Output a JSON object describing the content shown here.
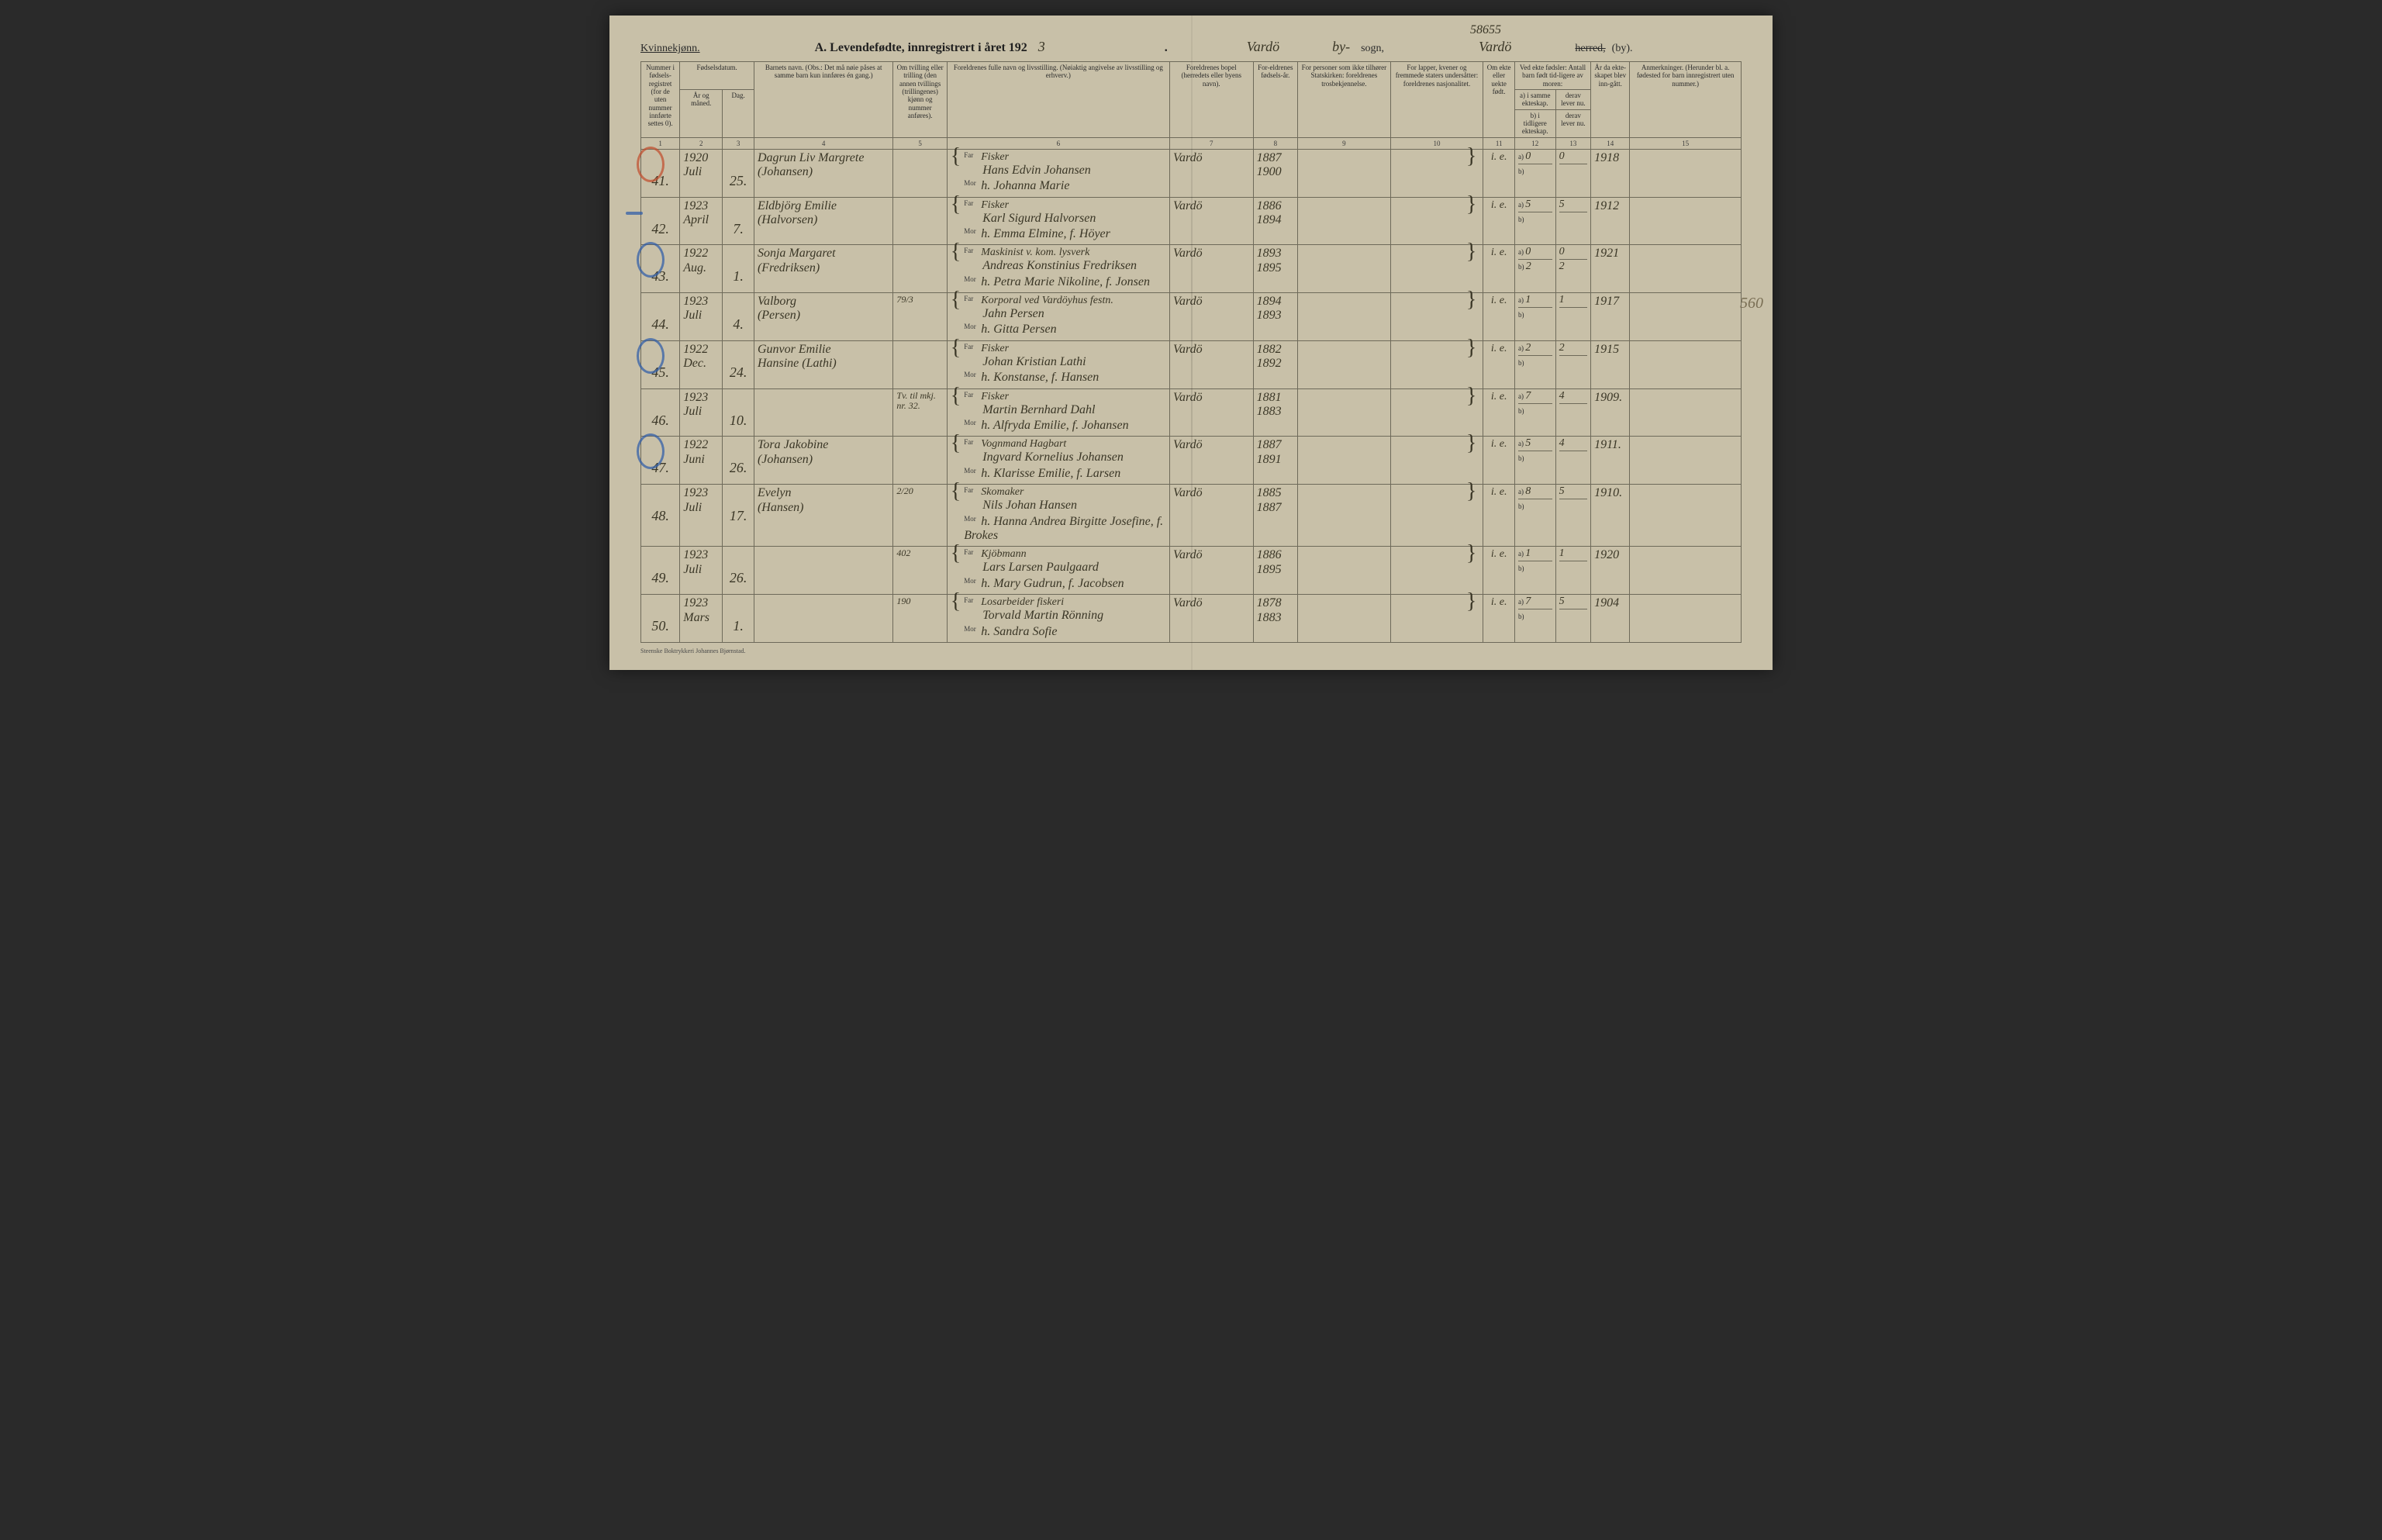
{
  "top_scribble": "58655",
  "header": {
    "gender_label": "Kvinnekjønn.",
    "title_prefix": "A.  Levendefødte, innregistrert i året 192",
    "year_suffix_hand": "3",
    "period_after_year": ".",
    "place_hand_1": "Vardö",
    "sogn_word_hand": "by-",
    "sogn_print": "sogn,",
    "place_hand_2": "Vardö",
    "herred_struck": "herred,",
    "by_print": "(by)."
  },
  "columns": {
    "c1": "Nummer i fødsels-registret (for de uten nummer innførte settes 0).",
    "c2_group": "Fødselsdatum.",
    "c2a": "År og måned.",
    "c2b": "Dag.",
    "c4": "Barnets navn.\n(Obs.: Det må nøie påses at samme barn kun innføres én gang.)",
    "c5": "Om tvilling eller trilling (den annen tvillings (trillingenes) kjønn og nummer anføres).",
    "c6": "Foreldrenes fulle navn og livsstilling.\n(Nøiaktig angivelse av livsstilling og erhverv.)",
    "c7": "Foreldrenes bopel (herredets eller byens navn).",
    "c8": "For-eldrenes fødsels-år.",
    "c9": "For personer som ikke tilhører Statskirken: foreldrenes trosbekjennelse.",
    "c10": "For lapper, kvener og fremmede staters undersåtter: foreldrenes nasjonalitet.",
    "c11": "Om ekte eller uekte født.",
    "c12_group": "Ved ekte fødsler: Antall barn født tid-ligere av moren:",
    "c12a": "a) i samme ekteskap.",
    "c12b": "b) i tidligere ekteskap.",
    "c13a": "derav lever nu.",
    "c13b": "derav lever nu.",
    "c14": "År da ekte-skapet blev inn-gått.",
    "c15": "Anmerkninger.\n(Herunder bl. a. fødested for barn innregistrert uten nummer.)"
  },
  "colnums": [
    "1",
    "2",
    "3",
    "4",
    "5",
    "6",
    "7",
    "8",
    "9",
    "10",
    "11",
    "12",
    "13",
    "14",
    "15"
  ],
  "far_label": "Far",
  "mor_label": "Mor",
  "entries": [
    {
      "nummer": "41.",
      "circle": "red",
      "aar_mnd_top": "1920",
      "aar_mnd_bot": "Juli",
      "dag": "25.",
      "barn_top": "Dagrun Liv Margrete",
      "barn_bot": "(Johansen)",
      "tvilling": "",
      "far_occ": "Fisker",
      "far_name": "Hans Edvin Johansen",
      "mor_name": "h. Johanna Marie",
      "bopel": "Vardö",
      "far_aar": "1887",
      "mor_aar": "1900",
      "c9": "",
      "c10": "",
      "ekte": "i. e.",
      "a_val": "0",
      "b_val": "",
      "c13": "0",
      "c14": "1918",
      "c15": ""
    },
    {
      "nummer": "42.",
      "mark": "dash-blue",
      "aar_mnd_top": "1923",
      "aar_mnd_bot": "April",
      "dag": "7.",
      "barn_top": "Eldbjörg Emilie",
      "barn_bot": "(Halvorsen)",
      "tvilling": "",
      "far_occ": "Fisker",
      "far_name": "Karl Sigurd Halvorsen",
      "mor_name": "h. Emma Elmine, f. Höyer",
      "bopel": "Vardö",
      "far_aar": "1886",
      "mor_aar": "1894",
      "c9": "",
      "c10": "",
      "ekte": "i. e.",
      "a_val": "5",
      "b_val": "",
      "c13": "5",
      "c14": "1912",
      "c15": ""
    },
    {
      "nummer": "43.",
      "circle": "blue",
      "aar_mnd_top": "1922",
      "aar_mnd_bot": "Aug.",
      "dag": "1.",
      "barn_top": "Sonja Margaret",
      "barn_bot": "(Fredriksen)",
      "tvilling": "",
      "far_occ": "Maskinist v. kom. lysverk",
      "far_name": "Andreas Konstinius Fredriksen",
      "mor_name": "h. Petra Marie Nikoline, f. Jonsen",
      "bopel": "Vardö",
      "far_aar": "1893",
      "mor_aar": "1895",
      "c9": "",
      "c10": "",
      "ekte": "i. e.",
      "a_val": "0",
      "b_val": "2",
      "c13_a": "0",
      "c13_b": "2",
      "c14": "1921",
      "c15": ""
    },
    {
      "nummer": "44.",
      "aar_mnd_top": "1923",
      "aar_mnd_bot": "Juli",
      "dag": "4.",
      "barn_top": "Valborg",
      "barn_bot": "(Persen)",
      "tvilling": "79/3",
      "far_occ": "Korporal ved Vardöyhus festn.",
      "far_name": "Jahn Persen",
      "mor_name": "h. Gitta Persen",
      "bopel": "Vardö",
      "far_aar": "1894",
      "mor_aar": "1893",
      "c9": "",
      "c10": "",
      "ekte": "i. e.",
      "a_val": "1",
      "b_val": "",
      "c13": "1",
      "c14": "1917",
      "c15": ""
    },
    {
      "nummer": "45.",
      "circle": "blue",
      "aar_mnd_top": "1922",
      "aar_mnd_bot": "Dec.",
      "dag": "24.",
      "barn_top": "Gunvor Emilie",
      "barn_bot": "Hansine (Lathi)",
      "tvilling": "",
      "far_occ": "Fisker",
      "far_name": "Johan Kristian Lathi",
      "mor_name": "h. Konstanse, f. Hansen",
      "bopel": "Vardö",
      "far_aar": "1882",
      "mor_aar": "1892",
      "c9": "",
      "c10": "",
      "ekte": "i. e.",
      "a_val": "2",
      "b_val": "",
      "c13": "2",
      "c14": "1915",
      "c15": ""
    },
    {
      "nummer": "46.",
      "aar_mnd_top": "1923",
      "aar_mnd_bot": "Juli",
      "dag": "10.",
      "barn_top": "",
      "barn_bot": "",
      "tvilling": "Tv. til mkj. nr. 32.",
      "far_occ": "Fisker",
      "far_name": "Martin Bernhard Dahl",
      "mor_name": "h. Alfryda Emilie, f. Johansen",
      "bopel": "Vardö",
      "far_aar": "1881",
      "mor_aar": "1883",
      "c9": "",
      "c10": "",
      "ekte": "i. e.",
      "a_val": "7",
      "b_val": "",
      "c13": "4",
      "c14": "1909.",
      "c15": ""
    },
    {
      "nummer": "47.",
      "circle": "blue",
      "aar_mnd_top": "1922",
      "aar_mnd_bot": "Juni",
      "dag": "26.",
      "barn_top": "Tora Jakobine",
      "barn_bot": "(Johansen)",
      "tvilling": "",
      "far_occ": "Vognmand Hagbart",
      "far_name": "Ingvard Kornelius Johansen",
      "mor_name": "h. Klarisse Emilie, f. Larsen",
      "bopel": "Vardö",
      "far_aar": "1887",
      "mor_aar": "1891",
      "c9": "",
      "c10": "",
      "ekte": "i. e.",
      "a_val": "5",
      "b_val": "",
      "c13": "4",
      "c14": "1911.",
      "c15": ""
    },
    {
      "nummer": "48.",
      "aar_mnd_top": "1923",
      "aar_mnd_bot": "Juli",
      "dag": "17.",
      "barn_top": "Evelyn",
      "barn_bot": "(Hansen)",
      "tvilling": "2/20",
      "far_occ": "Skomaker",
      "far_name": "Nils Johan Hansen",
      "mor_name": "h. Hanna Andrea Birgitte Josefine, f. Brokes",
      "bopel": "Vardö",
      "far_aar": "1885",
      "mor_aar": "1887",
      "c9": "",
      "c10": "",
      "ekte": "i. e.",
      "a_val": "8",
      "b_val": "",
      "c13": "5",
      "c14": "1910.",
      "c15": ""
    },
    {
      "nummer": "49.",
      "aar_mnd_top": "1923",
      "aar_mnd_bot": "Juli",
      "dag": "26.",
      "barn_top": "",
      "barn_bot": "",
      "tvilling": "402",
      "far_occ": "Kjöbmann",
      "far_name": "Lars Larsen Paulgaard",
      "mor_name": "h. Mary Gudrun, f. Jacobsen",
      "bopel": "Vardö",
      "far_aar": "1886",
      "mor_aar": "1895",
      "c9": "",
      "c10": "",
      "ekte": "i. e.",
      "a_val": "1",
      "b_val": "",
      "c13": "1",
      "c14": "1920",
      "c15": ""
    },
    {
      "nummer": "50.",
      "aar_mnd_top": "1923",
      "aar_mnd_bot": "Mars",
      "dag": "1.",
      "barn_top": "",
      "barn_bot": "",
      "tvilling": "190",
      "far_occ": "Losarbeider fiskeri",
      "far_name": "Torvald Martin Rönning",
      "mor_name": "h. Sandra Sofie",
      "bopel": "Vardö",
      "far_aar": "1878",
      "mor_aar": "1883",
      "c9": "",
      "c10": "",
      "ekte": "i. e.",
      "a_val": "7",
      "b_val": "",
      "c13": "5",
      "c14": "1904",
      "c15": ""
    }
  ],
  "side_scribble": "560",
  "footer": "Steenske Boktrykkeri Johannes Bjørnstad."
}
